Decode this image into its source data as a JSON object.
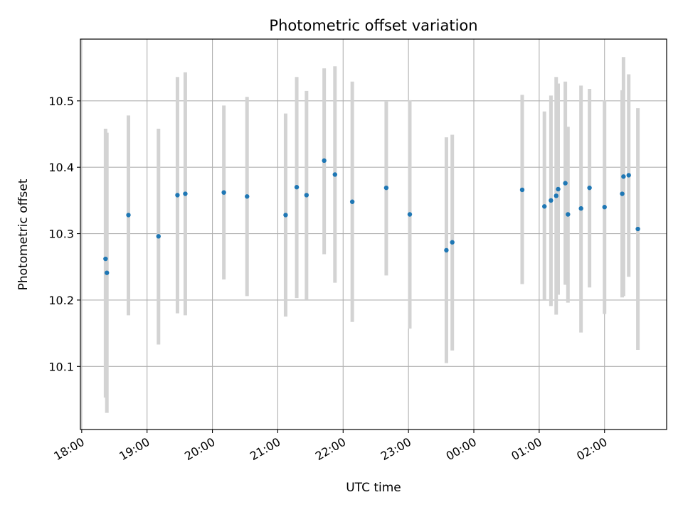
{
  "chart_data": {
    "type": "scatter",
    "title": "Photometric offset variation",
    "xlabel": "UTC time",
    "ylabel": "Photometric offset",
    "grid": true,
    "x_unit": "hours since 18:00",
    "xlim": [
      -0.02,
      8.95
    ],
    "ylim": [
      10.005,
      10.593
    ],
    "x_ticks": [
      {
        "value": 0,
        "label": "18:00"
      },
      {
        "value": 1,
        "label": "19:00"
      },
      {
        "value": 2,
        "label": "20:00"
      },
      {
        "value": 3,
        "label": "21:00"
      },
      {
        "value": 4,
        "label": "22:00"
      },
      {
        "value": 5,
        "label": "23:00"
      },
      {
        "value": 6,
        "label": "00:00"
      },
      {
        "value": 7,
        "label": "01:00"
      },
      {
        "value": 8,
        "label": "02:00"
      }
    ],
    "y_ticks": [
      {
        "value": 10.1,
        "label": "10.1"
      },
      {
        "value": 10.2,
        "label": "10.2"
      },
      {
        "value": 10.3,
        "label": "10.3"
      },
      {
        "value": 10.4,
        "label": "10.4"
      },
      {
        "value": 10.5,
        "label": "10.5"
      }
    ],
    "marker_color": "#1f77b4",
    "errorbar_color": "#d3d3d3",
    "points": [
      {
        "x": 0.365,
        "y": 10.262,
        "ylow": 10.053,
        "yhigh": 10.458
      },
      {
        "x": 0.385,
        "y": 10.241,
        "ylow": 10.03,
        "yhigh": 10.452
      },
      {
        "x": 0.715,
        "y": 10.328,
        "ylow": 10.177,
        "yhigh": 10.478
      },
      {
        "x": 1.175,
        "y": 10.296,
        "ylow": 10.133,
        "yhigh": 10.458
      },
      {
        "x": 1.465,
        "y": 10.358,
        "ylow": 10.18,
        "yhigh": 10.536
      },
      {
        "x": 1.585,
        "y": 10.36,
        "ylow": 10.177,
        "yhigh": 10.543
      },
      {
        "x": 2.175,
        "y": 10.362,
        "ylow": 10.231,
        "yhigh": 10.493
      },
      {
        "x": 2.53,
        "y": 10.356,
        "ylow": 10.206,
        "yhigh": 10.506
      },
      {
        "x": 3.12,
        "y": 10.328,
        "ylow": 10.175,
        "yhigh": 10.481
      },
      {
        "x": 3.29,
        "y": 10.37,
        "ylow": 10.203,
        "yhigh": 10.536
      },
      {
        "x": 3.44,
        "y": 10.358,
        "ylow": 10.201,
        "yhigh": 10.515
      },
      {
        "x": 3.71,
        "y": 10.41,
        "ylow": 10.269,
        "yhigh": 10.549
      },
      {
        "x": 3.875,
        "y": 10.389,
        "ylow": 10.226,
        "yhigh": 10.552
      },
      {
        "x": 4.14,
        "y": 10.348,
        "ylow": 10.167,
        "yhigh": 10.529
      },
      {
        "x": 4.66,
        "y": 10.369,
        "ylow": 10.237,
        "yhigh": 10.499
      },
      {
        "x": 5.02,
        "y": 10.329,
        "ylow": 10.157,
        "yhigh": 10.501
      },
      {
        "x": 5.58,
        "y": 10.275,
        "ylow": 10.105,
        "yhigh": 10.445
      },
      {
        "x": 5.67,
        "y": 10.287,
        "ylow": 10.124,
        "yhigh": 10.449
      },
      {
        "x": 6.74,
        "y": 10.366,
        "ylow": 10.224,
        "yhigh": 10.509
      },
      {
        "x": 7.08,
        "y": 10.341,
        "ylow": 10.201,
        "yhigh": 10.484
      },
      {
        "x": 7.18,
        "y": 10.35,
        "ylow": 10.191,
        "yhigh": 10.508
      },
      {
        "x": 7.26,
        "y": 10.357,
        "ylow": 10.178,
        "yhigh": 10.536
      },
      {
        "x": 7.29,
        "y": 10.367,
        "ylow": 10.208,
        "yhigh": 10.526
      },
      {
        "x": 7.4,
        "y": 10.376,
        "ylow": 10.223,
        "yhigh": 10.529
      },
      {
        "x": 7.44,
        "y": 10.329,
        "ylow": 10.196,
        "yhigh": 10.461
      },
      {
        "x": 7.64,
        "y": 10.338,
        "ylow": 10.151,
        "yhigh": 10.523
      },
      {
        "x": 7.77,
        "y": 10.369,
        "ylow": 10.219,
        "yhigh": 10.518
      },
      {
        "x": 8.0,
        "y": 10.34,
        "ylow": 10.179,
        "yhigh": 10.501
      },
      {
        "x": 8.27,
        "y": 10.36,
        "ylow": 10.204,
        "yhigh": 10.516
      },
      {
        "x": 8.29,
        "y": 10.386,
        "ylow": 10.206,
        "yhigh": 10.566
      },
      {
        "x": 8.37,
        "y": 10.388,
        "ylow": 10.235,
        "yhigh": 10.54
      },
      {
        "x": 8.51,
        "y": 10.307,
        "ylow": 10.125,
        "yhigh": 10.489
      }
    ]
  }
}
